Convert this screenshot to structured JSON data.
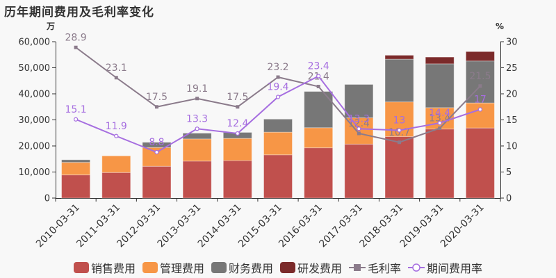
{
  "title": "历年期间费用及毛利率变化",
  "left_axis": {
    "unit": "万",
    "ticks": [
      "0",
      "10,000",
      "20,000",
      "30,000",
      "40,000",
      "50,000",
      "60,000"
    ],
    "max": 60000
  },
  "right_axis": {
    "unit": "%",
    "ticks": [
      "0",
      "5",
      "10",
      "15",
      "20",
      "25",
      "30"
    ],
    "max": 30
  },
  "colors": {
    "sales": "#c0504d",
    "admin": "#f79646",
    "finance": "#777777",
    "rd": "#7b2a2a",
    "gross_margin": "#8b7b8b",
    "expense_rate": "#a66ee0"
  },
  "legend": [
    {
      "key": "sales",
      "label": "销售费用",
      "type": "bar"
    },
    {
      "key": "admin",
      "label": "管理费用",
      "type": "bar"
    },
    {
      "key": "finance",
      "label": "财务费用",
      "type": "bar"
    },
    {
      "key": "rd",
      "label": "研发费用",
      "type": "bar"
    },
    {
      "key": "gross_margin",
      "label": "毛利率",
      "type": "line-square"
    },
    {
      "key": "expense_rate",
      "label": "期间费用率",
      "type": "line-circle"
    }
  ],
  "chart_data": {
    "type": "bar",
    "title": "历年期间费用及毛利率变化",
    "xlabel": "",
    "ylabel": "万",
    "ylabel_right": "%",
    "ylim": [
      0,
      60000
    ],
    "ylim_right": [
      0,
      30
    ],
    "stacked": true,
    "grid": false,
    "legend_position": "bottom",
    "categories": [
      "2010-03-31",
      "2011-03-31",
      "2012-03-31",
      "2013-03-31",
      "2014-03-31",
      "2015-03-31",
      "2016-03-31",
      "2017-03-31",
      "2018-03-31",
      "2019-03-31",
      "2020-03-31"
    ],
    "series": [
      {
        "name": "销售费用",
        "type": "bar",
        "axis": "left",
        "values": [
          8900,
          9800,
          12200,
          14200,
          14400,
          16600,
          19300,
          20700,
          23600,
          26500,
          26900
        ]
      },
      {
        "name": "管理费用",
        "type": "bar",
        "axis": "left",
        "values": [
          4800,
          6400,
          7200,
          8500,
          8500,
          8700,
          7700,
          10100,
          13300,
          8200,
          9600
        ]
      },
      {
        "name": "财务费用",
        "type": "bar",
        "axis": "left",
        "values": [
          1000,
          0,
          2000,
          2200,
          2300,
          5000,
          13900,
          12800,
          16400,
          16800,
          16100
        ]
      },
      {
        "name": "研发费用",
        "type": "bar",
        "axis": "left",
        "values": [
          0,
          0,
          0,
          0,
          0,
          0,
          0,
          0,
          1500,
          2600,
          3600
        ]
      },
      {
        "name": "毛利率",
        "type": "line",
        "axis": "right",
        "values": [
          28.9,
          23.1,
          17.5,
          19.1,
          17.5,
          23.2,
          21.4,
          12.4,
          10.7,
          13.4,
          21.5
        ]
      },
      {
        "name": "期间费用率",
        "type": "line",
        "axis": "right",
        "values": [
          15.1,
          11.9,
          8.8,
          13.3,
          12.4,
          19.4,
          23.4,
          13.3,
          13,
          14.4,
          17
        ]
      }
    ]
  }
}
